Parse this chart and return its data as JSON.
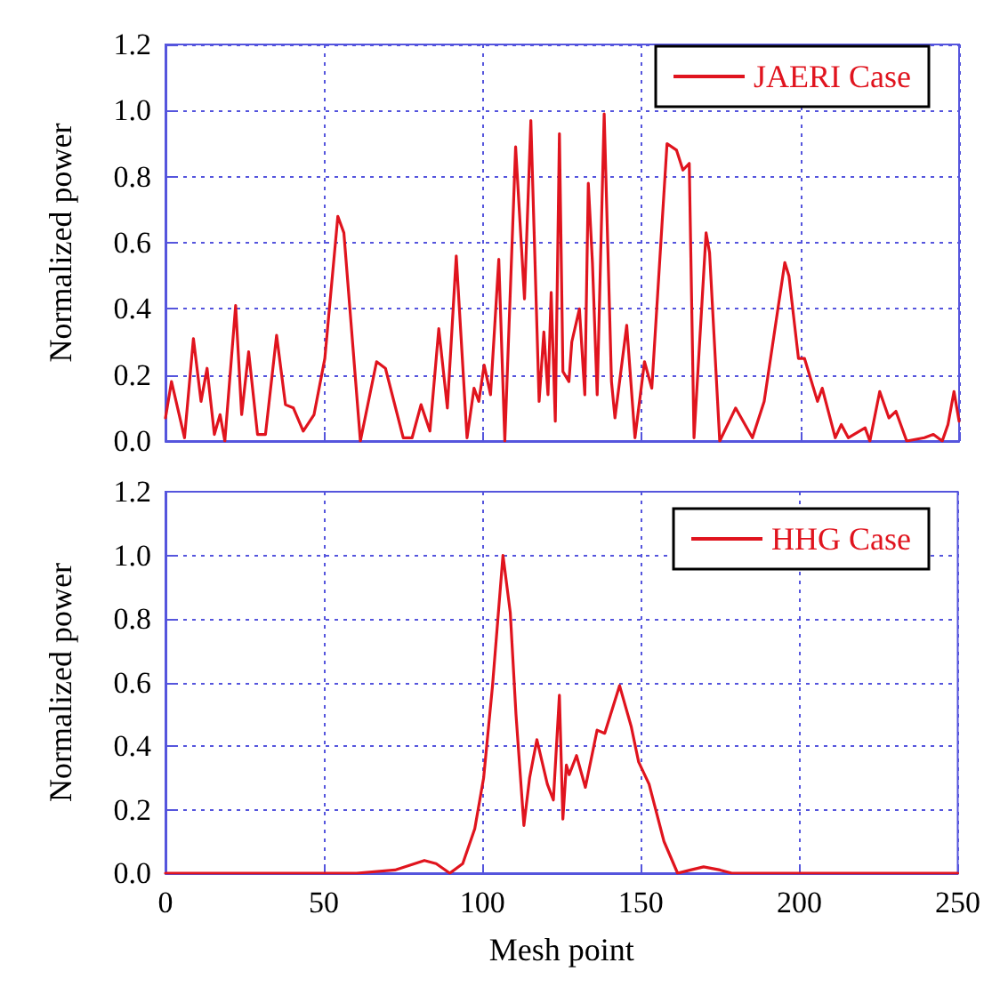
{
  "chart_data": [
    {
      "type": "line",
      "ylabel": "Normalized power",
      "xlim": [
        0,
        250
      ],
      "xticks": [
        0,
        50,
        100,
        150,
        200,
        250
      ],
      "ylim": [
        0,
        1.2
      ],
      "yticks": [
        {
          "value": 0,
          "label": "0.0"
        },
        {
          "value": 0.2,
          "label": "0.2"
        },
        {
          "value": 0.4,
          "label": "0.4"
        },
        {
          "value": 0.6,
          "label": "0.6"
        },
        {
          "value": 0.8,
          "label": "0.8"
        },
        {
          "value": 1,
          "label": "1.0"
        },
        {
          "value": 1.2,
          "label": "1.2"
        }
      ],
      "grid": true,
      "legend": "top right",
      "tick_labels": "y",
      "marker": "none",
      "line_style": "solid",
      "series": [
        {
          "name": "JAERI Case",
          "color": "#e0141e",
          "x": [
            0,
            1.9,
            6,
            8.8,
            11.2,
            13.1,
            15.4,
            17.2,
            18.7,
            22.1,
            24,
            26.2,
            29,
            31.5,
            35,
            37.8,
            40.3,
            43.4,
            46.8,
            50.2,
            54.3,
            56.2,
            61.4,
            66.5,
            69.3,
            74.9,
            77.7,
            80.5,
            83.3,
            86.1,
            88.8,
            91.6,
            95,
            97.2,
            98.7,
            100.4,
            102.4,
            105,
            106.9,
            110.3,
            113.1,
            115.1,
            117.7,
            119.2,
            120.5,
            121.5,
            122.8,
            124.1,
            125.2,
            127.1,
            128,
            130.4,
            132.1,
            133.2,
            134.5,
            136,
            138.2,
            140.5,
            141.6,
            145.3,
            147.9,
            150.9,
            153.2,
            158,
            161,
            163,
            165,
            166.5,
            170.3,
            171.4,
            174.6,
            179.6,
            184.9,
            188.6,
            195.1,
            196.4,
            199.4,
            201.3,
            205.4,
            206.9,
            211,
            212.9,
            215.1,
            220.4,
            221.9,
            225,
            227.9,
            230.1,
            233.5,
            239.1,
            241.9,
            244.7,
            246.5,
            248.4,
            250
          ],
          "values": [
            0.07,
            0.18,
            0.01,
            0.31,
            0.12,
            0.22,
            0.02,
            0.08,
            0,
            0.41,
            0.08,
            0.27,
            0.02,
            0.02,
            0.32,
            0.11,
            0.1,
            0.03,
            0.08,
            0.25,
            0.68,
            0.63,
            0,
            0.24,
            0.22,
            0.01,
            0.01,
            0.11,
            0.03,
            0.34,
            0.1,
            0.56,
            0.01,
            0.16,
            0.12,
            0.23,
            0.14,
            0.55,
            0,
            0.89,
            0.43,
            0.97,
            0.12,
            0.33,
            0.14,
            0.45,
            0.06,
            0.93,
            0.21,
            0.18,
            0.3,
            0.4,
            0.14,
            0.78,
            0.54,
            0.14,
            0.99,
            0.18,
            0.07,
            0.35,
            0.01,
            0.24,
            0.16,
            0.9,
            0.88,
            0.82,
            0.84,
            0.01,
            0.63,
            0.57,
            0,
            0.1,
            0.01,
            0.12,
            0.54,
            0.5,
            0.25,
            0.25,
            0.12,
            0.16,
            0.01,
            0.05,
            0.01,
            0.04,
            0,
            0.15,
            0.07,
            0.09,
            0,
            0.01,
            0.02,
            0,
            0.05,
            0.15,
            0.06
          ]
        }
      ]
    },
    {
      "type": "line",
      "xlabel": "Mesh point",
      "ylabel": "Normalized power",
      "xlim": [
        0,
        250
      ],
      "xticks": [
        0,
        50,
        100,
        150,
        200,
        250
      ],
      "ylim": [
        0,
        1.2
      ],
      "yticks": [
        {
          "value": 0,
          "label": "0.0"
        },
        {
          "value": 0.2,
          "label": "0.2"
        },
        {
          "value": 0.4,
          "label": "0.4"
        },
        {
          "value": 0.6,
          "label": "0.6"
        },
        {
          "value": 0.8,
          "label": "0.8"
        },
        {
          "value": 1,
          "label": "1.0"
        },
        {
          "value": 1.2,
          "label": "1.2"
        }
      ],
      "grid": true,
      "legend": "top right",
      "marker": "none",
      "line_style": "solid",
      "series": [
        {
          "name": "HHG Case",
          "color": "#e0141e",
          "x": [
            0,
            60.3,
            72.4,
            81.7,
            85.4,
            89.7,
            93.8,
            97.6,
            100.4,
            103.2,
            106.5,
            108.8,
            110.6,
            113.1,
            114.9,
            117.2,
            120.5,
            122.4,
            124.3,
            125.4,
            126.5,
            127.4,
            129.7,
            132.5,
            136.2,
            138.6,
            143.3,
            147,
            149.3,
            152.6,
            157.3,
            161.6,
            165.7,
            169.8,
            175,
            178.7,
            250
          ],
          "values": [
            0,
            0,
            0.01,
            0.04,
            0.03,
            0,
            0.03,
            0.14,
            0.3,
            0.59,
            1,
            0.82,
            0.5,
            0.15,
            0.3,
            0.42,
            0.28,
            0.23,
            0.56,
            0.17,
            0.34,
            0.31,
            0.37,
            0.27,
            0.45,
            0.44,
            0.59,
            0.46,
            0.35,
            0.28,
            0.1,
            0,
            0.01,
            0.02,
            0.01,
            0,
            0
          ]
        }
      ]
    }
  ]
}
